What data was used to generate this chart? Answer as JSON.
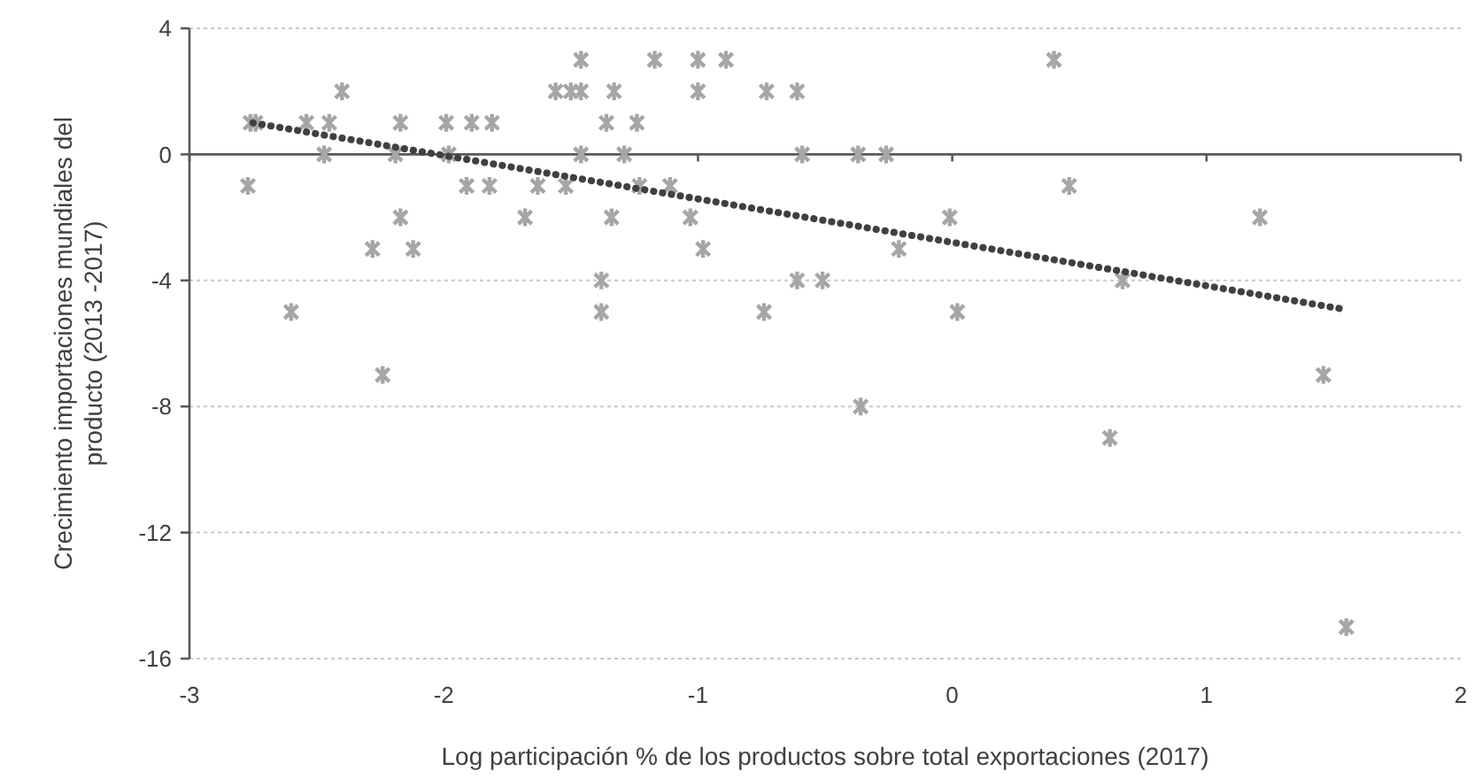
{
  "chart_data": {
    "type": "scatter",
    "xlabel": "Log participación % de los productos sobre total exportaciones (2017)",
    "ylabel": "Crecimiento importaciones mundiales del producto (2013 -2017)",
    "xlim": [
      -3,
      2
    ],
    "xticks": [
      -3,
      -2,
      -1,
      0,
      1,
      2
    ],
    "ylim": [
      -16,
      4
    ],
    "yticks": [
      -16,
      -12,
      -8,
      -4,
      0,
      4
    ],
    "grid": "y",
    "series": [
      {
        "color": "#a6a6a6",
        "marker": "cross",
        "x": [
          -1.46,
          -1.17,
          -1.0,
          -0.89,
          0.4,
          -2.4,
          -1.56,
          -1.5,
          -1.46,
          -1.33,
          -1.0,
          -0.73,
          -0.61,
          -2.76,
          -2.74,
          -2.54,
          -2.45,
          -2.17,
          -1.99,
          -1.89,
          -1.81,
          -1.36,
          -1.24,
          -2.47,
          -2.19,
          -1.98,
          -1.46,
          -1.29,
          -0.59,
          -0.37,
          -0.26,
          -2.77,
          -1.91,
          -1.82,
          -1.63,
          -1.52,
          -1.23,
          -1.11,
          0.46,
          -2.17,
          -1.68,
          -1.34,
          -1.03,
          -0.01,
          1.21,
          -2.28,
          -2.12,
          -0.98,
          -0.21,
          -1.38,
          -0.61,
          -0.51,
          0.67,
          -2.6,
          -1.38,
          -0.74,
          0.02,
          -2.24,
          1.46,
          -0.36,
          0.62,
          1.55
        ],
        "values": [
          3,
          3,
          3,
          3,
          3,
          2,
          2,
          2,
          2,
          2,
          2,
          2,
          2,
          1,
          1,
          1,
          1,
          1,
          1,
          1,
          1,
          1,
          1,
          0,
          0,
          0,
          0,
          0,
          0,
          0,
          0,
          -1,
          -1,
          -1,
          -1,
          -1,
          -1,
          -1,
          -1,
          -2,
          -2,
          -2,
          -2,
          -2,
          -2,
          -3,
          -3,
          -3,
          -3,
          -4,
          -4,
          -4,
          -4,
          -5,
          -5,
          -5,
          -5,
          -7,
          -7,
          -8,
          -9,
          -15
        ]
      },
      {
        "type": "line",
        "line_style": "dotted",
        "marker": "none",
        "color": "#404040",
        "x": [
          -2.75,
          1.53
        ],
        "values": [
          1.0,
          -4.9
        ]
      }
    ]
  }
}
